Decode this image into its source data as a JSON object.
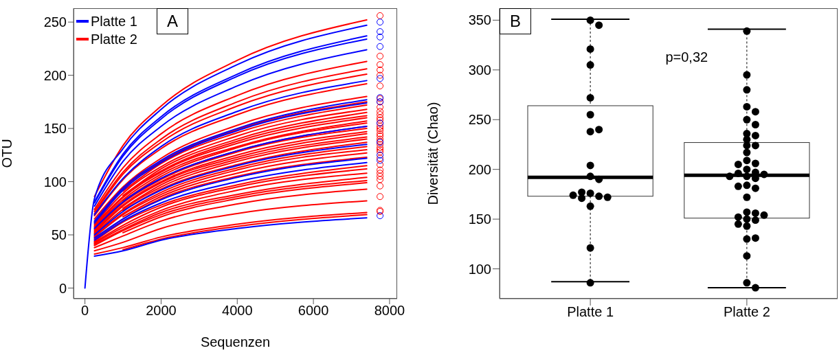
{
  "chart_data": [
    {
      "type": "line",
      "title": "A",
      "xlabel": "Sequenzen",
      "ylabel": "OTU",
      "x": [
        0,
        250,
        1000,
        2000,
        4000,
        7400
      ],
      "xlim": [
        -300,
        8200
      ],
      "xticks": [
        0,
        2000,
        4000,
        6000,
        8000
      ],
      "ylim": [
        -10,
        263
      ],
      "yticks": [
        0,
        50,
        100,
        150,
        200,
        250
      ],
      "legend": "top left",
      "marker": "none",
      "line_style": "solid",
      "series": [
        {
          "name": "Platte 1",
          "color": "#0000ff",
          "values": [
            0,
            84,
            131,
            168,
            210,
            247
          ]
        },
        {
          "color": "#0000ff",
          "values": [
            null,
            81,
            126,
            161,
            201,
            237
          ]
        },
        {
          "color": "#0000ff",
          "values": [
            null,
            80,
            124,
            159,
            199,
            234
          ]
        },
        {
          "color": "#0000ff",
          "values": [
            null,
            77,
            119,
            152,
            190,
            224
          ]
        },
        {
          "color": "#0000ff",
          "values": [
            null,
            69,
            103,
            133,
            166,
            195
          ]
        },
        {
          "color": "#0000ff",
          "values": [
            null,
            63,
            94,
            120,
            150,
            177
          ]
        },
        {
          "color": "#0000ff",
          "values": [
            null,
            61,
            92,
            118,
            148,
            174
          ]
        },
        {
          "color": "#0000ff",
          "values": [
            null,
            56,
            81,
            103,
            129,
            152
          ]
        },
        {
          "color": "#0000ff",
          "values": [
            null,
            50,
            72,
            92,
            115,
            135
          ]
        },
        {
          "color": "#0000ff",
          "values": [
            null,
            47,
            65,
            83,
            104,
            122
          ]
        },
        {
          "color": "#0000ff",
          "values": [
            null,
            45,
            63,
            80,
            100,
            118
          ]
        },
        {
          "color": "#0000ff",
          "values": [
            null,
            30,
            35,
            45,
            56,
            66
          ]
        },
        {
          "name": "Platte 2",
          "color": "#ff0000",
          "values": [
            null,
            86,
            134,
            171,
            214,
            252
          ]
        },
        {
          "color": "#ff0000",
          "values": [
            null,
            74,
            113,
            145,
            181,
            213
          ]
        },
        {
          "color": "#ff0000",
          "values": [
            null,
            72,
            109,
            140,
            175,
            206
          ]
        },
        {
          "color": "#ff0000",
          "values": [
            null,
            70,
            107,
            137,
            171,
            201
          ]
        },
        {
          "color": "#ff0000",
          "values": [
            null,
            68,
            102,
            131,
            163,
            192
          ]
        },
        {
          "color": "#ff0000",
          "values": [
            null,
            65,
            95,
            122,
            153,
            180
          ]
        },
        {
          "color": "#ff0000",
          "values": [
            null,
            62,
            93,
            119,
            149,
            175
          ]
        },
        {
          "color": "#ff0000",
          "values": [
            null,
            null,
            91,
            117,
            146,
            172
          ]
        },
        {
          "color": "#ff0000",
          "values": [
            null,
            60,
            89,
            114,
            143,
            168
          ]
        },
        {
          "color": "#ff0000",
          "values": [
            null,
            null,
            87,
            112,
            140,
            165
          ]
        },
        {
          "color": "#ff0000",
          "values": [
            null,
            59,
            86,
            110,
            138,
            162
          ]
        },
        {
          "color": "#ff0000",
          "values": [
            null,
            58,
            85,
            109,
            136,
            160
          ]
        },
        {
          "color": "#ff0000",
          "values": [
            null,
            57,
            83,
            107,
            133,
            157
          ]
        },
        {
          "color": "#ff0000",
          "values": [
            null,
            null,
            82,
            105,
            132,
            155
          ]
        },
        {
          "color": "#ff0000",
          "values": [
            null,
            55,
            81,
            103,
            129,
            152
          ]
        },
        {
          "color": "#ff0000",
          "values": [
            null,
            54,
            80,
            102,
            128,
            150
          ]
        },
        {
          "color": "#ff0000",
          "values": [
            null,
            53,
            78,
            100,
            125,
            147
          ]
        },
        {
          "color": "#ff0000",
          "values": [
            null,
            52,
            77,
            99,
            123,
            145
          ]
        },
        {
          "color": "#ff0000",
          "values": [
            null,
            null,
            75,
            97,
            121,
            142
          ]
        },
        {
          "color": "#ff0000",
          "values": [
            null,
            51,
            74,
            95,
            119,
            140
          ]
        },
        {
          "color": "#ff0000",
          "values": [
            null,
            null,
            73,
            93,
            116,
            137
          ]
        },
        {
          "color": "#ff0000",
          "values": [
            null,
            49,
            70,
            90,
            113,
            133
          ]
        },
        {
          "color": "#ff0000",
          "values": [
            null,
            48,
            69,
            88,
            111,
            130
          ]
        },
        {
          "color": "#ff0000",
          "values": [
            null,
            null,
            67,
            86,
            108,
            127
          ]
        },
        {
          "color": "#ff0000",
          "values": [
            null,
            46,
            65,
            84,
            105,
            123
          ]
        },
        {
          "color": "#ff0000",
          "values": [
            null,
            44,
            62,
            78,
            97,
            115
          ]
        },
        {
          "color": "#ff0000",
          "values": [
            null,
            43,
            59,
            76,
            95,
            112
          ]
        },
        {
          "color": "#ff0000",
          "values": [
            null,
            42,
            57,
            73,
            92,
            108
          ]
        },
        {
          "color": "#ff0000",
          "values": [
            null,
            41,
            55,
            71,
            88,
            104
          ]
        },
        {
          "color": "#ff0000",
          "values": [
            null,
            40,
            54,
            69,
            86,
            101
          ]
        },
        {
          "color": "#ff0000",
          "values": [
            null,
            null,
            52,
            67,
            84,
            99
          ]
        },
        {
          "color": "#ff0000",
          "values": [
            null,
            38,
            49,
            63,
            79,
            93
          ]
        },
        {
          "color": "#ff0000",
          "values": [
            null,
            35,
            43,
            56,
            70,
            82
          ]
        },
        {
          "color": "#ff0000",
          "values": [
            null,
            32,
            38,
            48,
            60,
            71
          ]
        },
        {
          "color": "#ff0000",
          "values": [
            null,
            null,
            36,
            46,
            58,
            69
          ]
        },
        {
          "type": "scatter",
          "marker": "circle",
          "color": "#0000ff",
          "x": [
            7750,
            7750,
            7750,
            7750,
            7750,
            7750,
            7750,
            7750,
            7750,
            7750,
            7750,
            7750
          ],
          "values": [
            250,
            241,
            236,
            227,
            197,
            179,
            175,
            155,
            137,
            125,
            120,
            68
          ]
        },
        {
          "type": "scatter",
          "marker": "circle",
          "color": "#ff0000",
          "x": [
            7750,
            7750,
            7750,
            7750,
            7750,
            7750,
            7750,
            7750,
            7750,
            7750,
            7750,
            7750,
            7750,
            7750,
            7750,
            7750,
            7750,
            7750,
            7750,
            7750,
            7750,
            7750,
            7750,
            7750,
            7750,
            7750,
            7750,
            7750,
            7750,
            7750,
            7750,
            7750,
            7750,
            7750,
            7750
          ],
          "values": [
            256,
            218,
            210,
            205,
            200,
            190,
            178,
            175,
            170,
            166,
            163,
            160,
            158,
            155,
            152,
            150,
            148,
            145,
            143,
            140,
            138,
            135,
            132,
            130,
            128,
            122,
            116,
            111,
            108,
            105,
            102,
            96,
            86,
            73,
            72
          ]
        }
      ]
    },
    {
      "type": "box",
      "title": "B",
      "ylabel": "Diversität (Chao)",
      "categories": [
        "Platte 1",
        "Platte 2"
      ],
      "ylim": [
        70,
        362
      ],
      "yticks": [
        100,
        150,
        200,
        250,
        300,
        350
      ],
      "annotations": [
        "p=0,32"
      ],
      "boxes": [
        {
          "low": 87,
          "q1": 173,
          "median": 192,
          "q3": 264,
          "high": 351
        },
        {
          "low": 81,
          "q1": 151,
          "median": 194,
          "q3": 227,
          "high": 341
        }
      ],
      "series": [
        {
          "type": "scatter",
          "color": "#000000",
          "x": [
            "Platte 1",
            "Platte 1",
            "Platte 1",
            "Platte 1",
            "Platte 1",
            "Platte 1",
            "Platte 1",
            "Platte 1",
            "Platte 1",
            "Platte 1",
            "Platte 1",
            "Platte 1",
            "Platte 1",
            "Platte 1",
            "Platte 1",
            "Platte 1",
            "Platte 1",
            "Platte 1",
            "Platte 1",
            "Platte 1"
          ],
          "values": [
            350,
            345,
            321,
            305,
            272,
            255,
            238,
            240,
            204,
            193,
            190,
            176,
            173,
            171,
            172,
            174,
            177,
            163,
            121,
            86
          ]
        },
        {
          "type": "scatter",
          "color": "#000000",
          "x": [
            "Platte 2",
            "Platte 2",
            "Platte 2",
            "Platte 2",
            "Platte 2",
            "Platte 2",
            "Platte 2",
            "Platte 2",
            "Platte 2",
            "Platte 2",
            "Platte 2",
            "Platte 2",
            "Platte 2",
            "Platte 2",
            "Platte 2",
            "Platte 2",
            "Platte 2",
            "Platte 2",
            "Platte 2",
            "Platte 2",
            "Platte 2",
            "Platte 2",
            "Platte 2",
            "Platte 2",
            "Platte 2",
            "Platte 2",
            "Platte 2",
            "Platte 2",
            "Platte 2",
            "Platte 2",
            "Platte 2",
            "Platte 2",
            "Platte 2",
            "Platte 2",
            "Platte 2",
            "Platte 2",
            "Platte 2",
            "Platte 2",
            "Platte 2",
            "Platte 2"
          ],
          "values": [
            339,
            295,
            280,
            263,
            258,
            250,
            245,
            236,
            234,
            230,
            224,
            224,
            217,
            209,
            206,
            205,
            200,
            197,
            196,
            195,
            193,
            193,
            191,
            184,
            181,
            183,
            172,
            157,
            156,
            152,
            150,
            149,
            154,
            143,
            145,
            130,
            131,
            113,
            86,
            81
          ]
        }
      ]
    }
  ]
}
